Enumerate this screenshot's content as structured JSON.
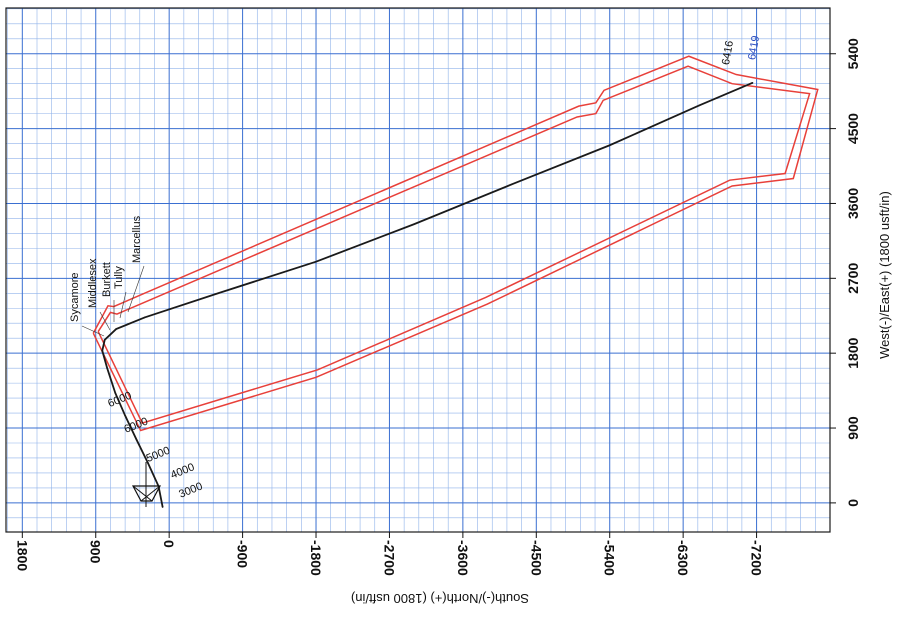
{
  "chart_data": {
    "type": "line",
    "title": "",
    "xlabel": "South(-)/North(+) (1800 usft/in)",
    "ylabel": "West(-)/East(+) (1800 usft/in)",
    "xlim": [
      2000,
      -8100
    ],
    "ylim": [
      -350,
      5950
    ],
    "x_ticks": [
      1800,
      900,
      0,
      -900,
      -1800,
      -2700,
      -3600,
      -4500,
      -5400,
      -6300,
      -7200
    ],
    "x_tick_labels": [
      "1800",
      "900",
      "0",
      "-900",
      "-1800",
      "-2700",
      "-3600",
      "-4500",
      "-5400",
      "-6300",
      "-7200"
    ],
    "y_ticks": [
      0,
      900,
      1800,
      2700,
      3600,
      4500,
      5400
    ],
    "y_tick_labels": [
      "0",
      "900",
      "1800",
      "2700",
      "3600",
      "4500",
      "5400"
    ],
    "grid": true,
    "colors": {
      "wellpath": "#1a1a1a",
      "boundary": "#e8403a",
      "grid": "#3a6fd1",
      "grid_minor": "#8fb2ea",
      "text": "#111111",
      "note_blue": "#2f4fc0"
    },
    "series": [
      {
        "values": [
          {
            "x": 80,
            "y": -50
          },
          {
            "x": 130,
            "y": 200
          },
          {
            "x": 260,
            "y": 480
          },
          {
            "x": 400,
            "y": 760
          },
          {
            "x": 540,
            "y": 1050
          },
          {
            "x": 660,
            "y": 1320
          },
          {
            "x": 760,
            "y": 1620
          },
          {
            "x": 820,
            "y": 1830
          },
          {
            "x": 790,
            "y": 1960
          },
          {
            "x": 650,
            "y": 2090
          },
          {
            "x": 300,
            "y": 2230
          },
          {
            "x": -600,
            "y": 2520
          },
          {
            "x": -1800,
            "y": 2900
          },
          {
            "x": -3000,
            "y": 3350
          },
          {
            "x": -4200,
            "y": 3830
          },
          {
            "x": -5400,
            "y": 4300
          },
          {
            "x": -6500,
            "y": 4780
          },
          {
            "x": -7150,
            "y": 5050
          }
        ]
      }
    ],
    "boundaries": [
      {
        "values": [
          {
            "x": 930,
            "y": 2040
          },
          {
            "x": 750,
            "y": 2370
          },
          {
            "x": 680,
            "y": 2360
          },
          {
            "x": -5020,
            "y": 4770
          },
          {
            "x": -5230,
            "y": 4810
          },
          {
            "x": -5330,
            "y": 4960
          },
          {
            "x": -6370,
            "y": 5370
          },
          {
            "x": -6950,
            "y": 5150
          },
          {
            "x": -7950,
            "y": 4970
          },
          {
            "x": -7650,
            "y": 3900
          },
          {
            "x": -6900,
            "y": 3810
          },
          {
            "x": -3900,
            "y": 2390
          },
          {
            "x": -1800,
            "y": 1510
          },
          {
            "x": 350,
            "y": 870
          },
          {
            "x": 930,
            "y": 2040
          }
        ]
      },
      {
        "values": [
          {
            "x": 870,
            "y": 2060
          },
          {
            "x": 720,
            "y": 2290
          },
          {
            "x": 640,
            "y": 2270
          },
          {
            "x": -5000,
            "y": 4640
          },
          {
            "x": -5230,
            "y": 4680
          },
          {
            "x": -5320,
            "y": 4840
          },
          {
            "x": -6360,
            "y": 5250
          },
          {
            "x": -6900,
            "y": 5040
          },
          {
            "x": -7850,
            "y": 4920
          },
          {
            "x": -7550,
            "y": 3960
          },
          {
            "x": -6870,
            "y": 3880
          },
          {
            "x": -3880,
            "y": 2470
          },
          {
            "x": -1820,
            "y": 1600
          },
          {
            "x": 330,
            "y": 960
          },
          {
            "x": 870,
            "y": 2060
          }
        ]
      }
    ],
    "md_labels": [
      {
        "text": "3000",
        "x": -140,
        "y": 60
      },
      {
        "text": "4000",
        "x": -40,
        "y": 290
      },
      {
        "text": "5000",
        "x": 260,
        "y": 490
      },
      {
        "text": "6000",
        "x": 530,
        "y": 840
      },
      {
        "text": "6000",
        "x": 730,
        "y": 1150
      }
    ],
    "end_labels": [
      {
        "text": "6416",
        "x": -6860,
        "y": 5260
      },
      {
        "text": "6419",
        "x": -7180,
        "y": 5320
      }
    ],
    "formations": [
      "Sycamore",
      "Middlesex",
      "Burkett",
      "Tully",
      "Marcellus"
    ]
  }
}
